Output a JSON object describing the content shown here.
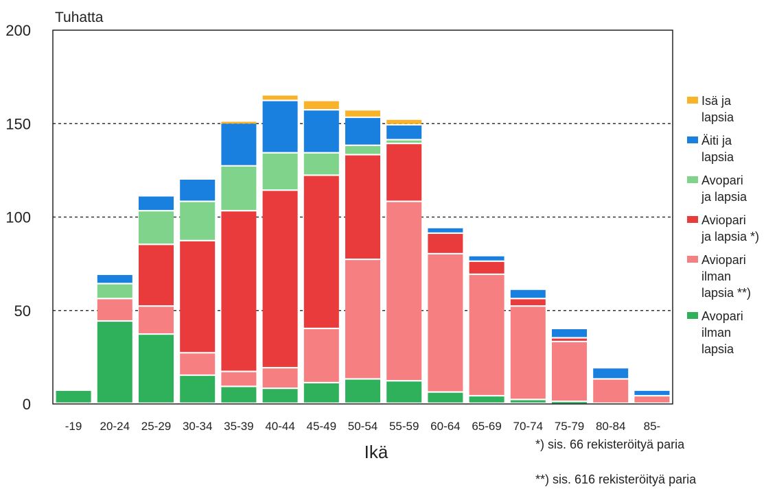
{
  "chart_data": {
    "type": "bar",
    "stacked": true,
    "ylabel": "Tuhatta",
    "xlabel": "Ikä",
    "ylim": [
      0,
      200
    ],
    "yticks": [
      0,
      50,
      100,
      150,
      200
    ],
    "grid": "horizontal dashed at 50, 100, 150",
    "legend_position": "right",
    "categories": [
      "-19",
      "20-24",
      "25-29",
      "30-34",
      "35-39",
      "40-44",
      "45-49",
      "50-54",
      "55-59",
      "60-64",
      "65-69",
      "70-74",
      "75-79",
      "80-84",
      "85-"
    ],
    "series": [
      {
        "name": "Avopari ilman lapsia",
        "color": "#2eb15a",
        "values": [
          7,
          44,
          37,
          15,
          9,
          8,
          11,
          13,
          12,
          6,
          4,
          2,
          1,
          0,
          0
        ]
      },
      {
        "name": "Aviopari ilman lapsia **)",
        "color": "#f57f81",
        "values": [
          0,
          12,
          15,
          12,
          8,
          11,
          29,
          64,
          96,
          74,
          65,
          50,
          32,
          13,
          4
        ]
      },
      {
        "name": "Aviopari ja lapsia *)",
        "color": "#e93a3c",
        "values": [
          0,
          0,
          33,
          60,
          86,
          95,
          82,
          56,
          31,
          11,
          7,
          4,
          2,
          0,
          0
        ]
      },
      {
        "name": "Avopari ja lapsia",
        "color": "#7fd38b",
        "values": [
          0,
          8,
          18,
          21,
          24,
          20,
          12,
          5,
          2,
          0,
          0,
          0,
          0,
          0,
          0
        ]
      },
      {
        "name": "Äiti ja lapsia",
        "color": "#1a80e0",
        "values": [
          0,
          5,
          8,
          12,
          23,
          28,
          23,
          15,
          8,
          3,
          3,
          5,
          5,
          6,
          3
        ]
      },
      {
        "name": "Isä ja lapsia",
        "color": "#f8b32a",
        "values": [
          0,
          0,
          0,
          0,
          1,
          3,
          5,
          4,
          3,
          0,
          0,
          0,
          0,
          0,
          0
        ]
      }
    ],
    "legend": [
      {
        "lines": [
          "Isä ja",
          "lapsia"
        ],
        "color": "#f8b32a"
      },
      {
        "lines": [
          "Äiti ja",
          "lapsia"
        ],
        "color": "#1a80e0"
      },
      {
        "lines": [
          "Avopari",
          "ja lapsia"
        ],
        "color": "#7fd38b"
      },
      {
        "lines": [
          "Aviopari",
          "ja lapsia *)"
        ],
        "color": "#e93a3c"
      },
      {
        "lines": [
          "Aviopari",
          "ilman",
          "lapsia **)"
        ],
        "color": "#f57f81"
      },
      {
        "lines": [
          "Avopari",
          "ilman",
          "lapsia"
        ],
        "color": "#2eb15a"
      }
    ],
    "footnotes": [
      "*) sis. 66 rekisteröityä paria",
      "**) sis. 616 rekisteröityä paria"
    ]
  }
}
